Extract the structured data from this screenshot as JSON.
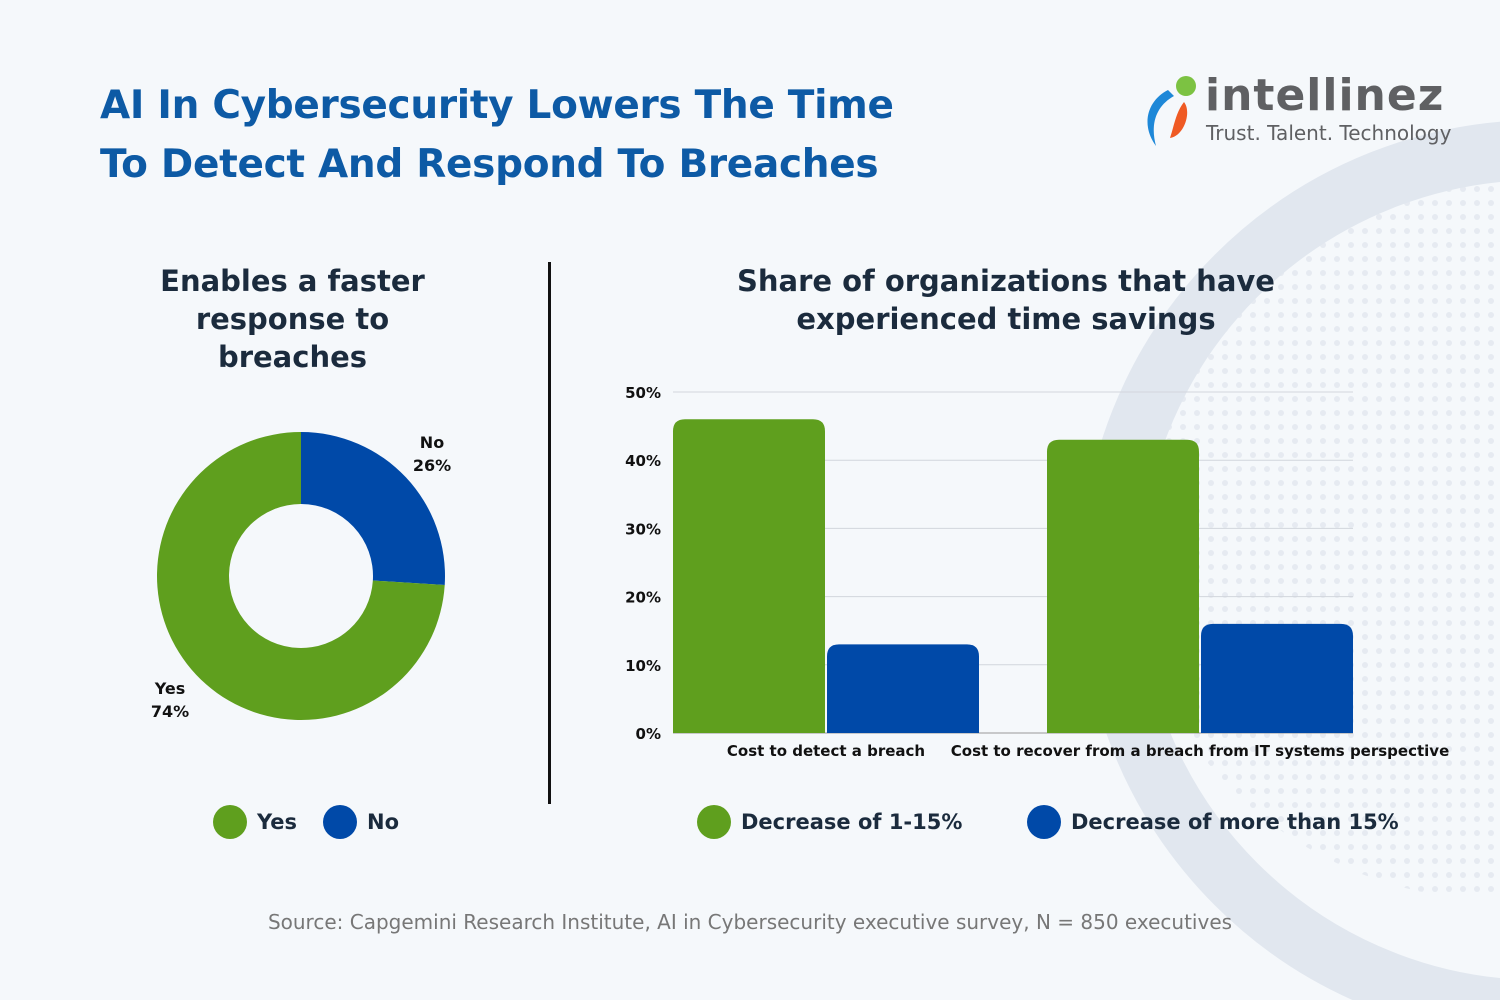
{
  "title": {
    "line1": "AI In Cybersecurity Lowers The Time",
    "line2": "To Detect And Respond To Breaches"
  },
  "logo": {
    "name": "intellinez",
    "tagline": "Trust. Talent. Technology"
  },
  "colors": {
    "green": "#5f9f1e",
    "blue": "#0049a8",
    "title": "#0d5aa5"
  },
  "source": "Source: Capgemini Research Institute, AI in Cybersecurity executive survey, N = 850 executives",
  "chart_data": [
    {
      "type": "pie",
      "donut": true,
      "title": "Enables a faster response to breaches",
      "title_lines": [
        "Enables a faster",
        "response to",
        "breaches"
      ],
      "slices": [
        {
          "label": "No",
          "value": 26,
          "value_label": "26%",
          "color": "#0049a8"
        },
        {
          "label": "Yes",
          "value": 74,
          "value_label": "74%",
          "color": "#5f9f1e"
        }
      ],
      "legend": [
        "Yes",
        "No"
      ],
      "legend_placement": "bottom"
    },
    {
      "type": "bar",
      "title": "Share of organizations that have experienced time savings",
      "title_lines": [
        "Share of organizations that have",
        "experienced time savings"
      ],
      "categories": [
        "Cost to detect  a breach",
        "Cost to recover from a breach from IT systems perspective"
      ],
      "series": [
        {
          "name": "Decrease of 1-15%",
          "values": [
            46,
            43
          ],
          "color": "#5f9f1e"
        },
        {
          "name": "Decrease of more than 15%",
          "values": [
            13,
            16
          ],
          "color": "#0049a8"
        }
      ],
      "ylim": [
        0,
        50
      ],
      "yticks": [
        "0%",
        "10%",
        "20%",
        "30%",
        "40%",
        "50%"
      ],
      "grid": true,
      "legend_placement": "bottom"
    }
  ]
}
